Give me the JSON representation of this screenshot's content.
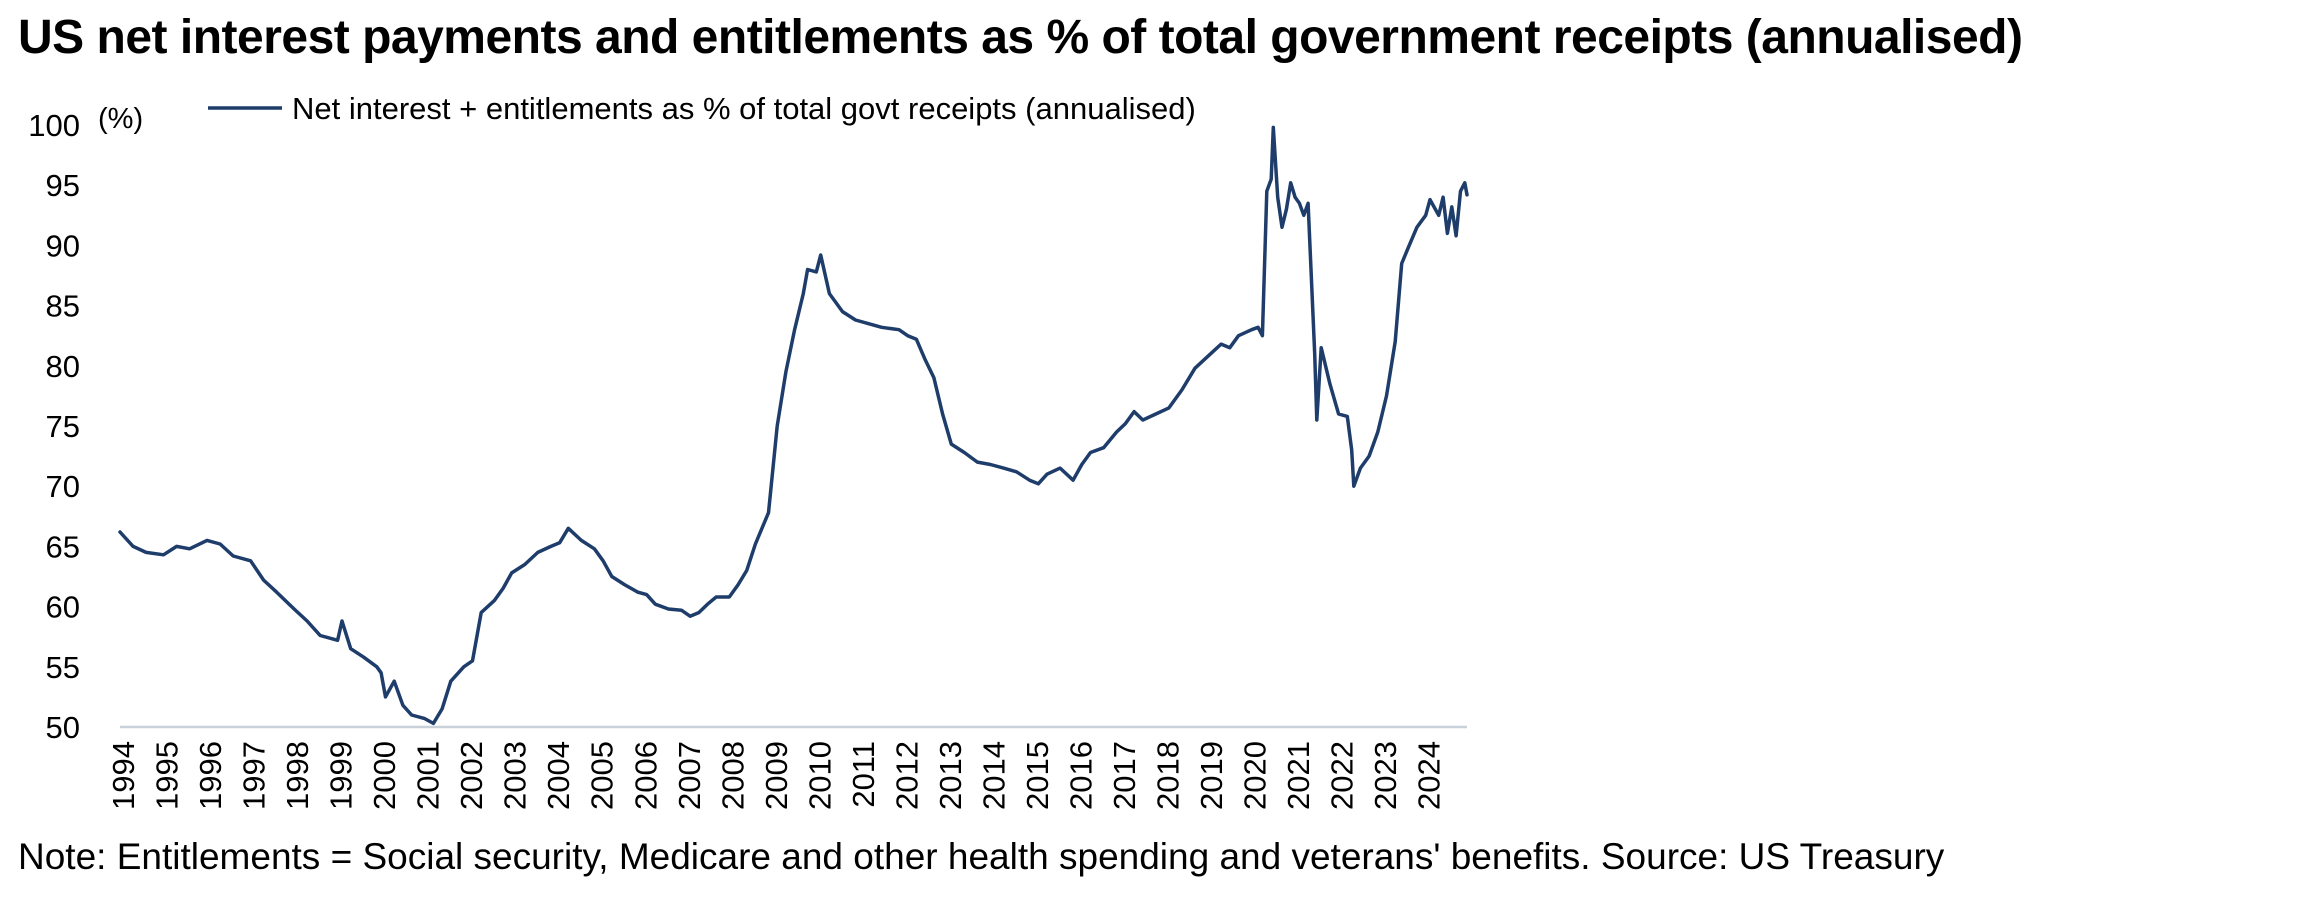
{
  "title": "US net interest payments and entitlements as % of total government receipts (annualised)",
  "note": "Note: Entitlements = Social security, Medicare and other health spending and veterans' benefits. Source: US Treasury",
  "colors": {
    "series": "#1f3d6b",
    "axis": "#c8d0da"
  },
  "chart_data": {
    "type": "line",
    "title": "US net interest payments and entitlements as % of total government receipts (annualised)",
    "ylabel": "(%)",
    "ylim": [
      50,
      100
    ],
    "yticks": [
      50,
      55,
      60,
      65,
      70,
      75,
      80,
      85,
      90,
      95,
      100
    ],
    "xlim": [
      1994.0,
      2024.95
    ],
    "xticks": [
      "1994",
      "1995",
      "1996",
      "1997",
      "1998",
      "1999",
      "2000",
      "2001",
      "2002",
      "2003",
      "2004",
      "2005",
      "2006",
      "2007",
      "2008",
      "2009",
      "2010",
      "2011",
      "2012",
      "2013",
      "2014",
      "2015",
      "2016",
      "2017",
      "2018",
      "2019",
      "2020",
      "2021",
      "2022",
      "2023",
      "2024"
    ],
    "legend": "top-left",
    "grid": false,
    "series": [
      {
        "name": "Net interest + entitlements as % of total govt receipts (annualised)",
        "points": [
          [
            1994.0,
            66.2
          ],
          [
            1994.3,
            65.0
          ],
          [
            1994.6,
            64.5
          ],
          [
            1995.0,
            64.3
          ],
          [
            1995.3,
            65.0
          ],
          [
            1995.6,
            64.8
          ],
          [
            1996.0,
            65.5
          ],
          [
            1996.3,
            65.2
          ],
          [
            1996.6,
            64.2
          ],
          [
            1997.0,
            63.8
          ],
          [
            1997.3,
            62.2
          ],
          [
            1997.6,
            61.2
          ],
          [
            1998.0,
            59.8
          ],
          [
            1998.3,
            58.8
          ],
          [
            1998.6,
            57.6
          ],
          [
            1999.0,
            57.2
          ],
          [
            1999.1,
            58.8
          ],
          [
            1999.3,
            56.5
          ],
          [
            1999.6,
            55.8
          ],
          [
            1999.9,
            55.0
          ],
          [
            2000.0,
            54.5
          ],
          [
            2000.1,
            52.5
          ],
          [
            2000.3,
            53.8
          ],
          [
            2000.5,
            51.8
          ],
          [
            2000.7,
            51.0
          ],
          [
            2001.0,
            50.7
          ],
          [
            2001.2,
            50.3
          ],
          [
            2001.4,
            51.5
          ],
          [
            2001.6,
            53.8
          ],
          [
            2001.9,
            55.0
          ],
          [
            2002.1,
            55.5
          ],
          [
            2002.3,
            59.5
          ],
          [
            2002.6,
            60.5
          ],
          [
            2002.8,
            61.5
          ],
          [
            2003.0,
            62.8
          ],
          [
            2003.3,
            63.5
          ],
          [
            2003.6,
            64.5
          ],
          [
            2003.9,
            65.0
          ],
          [
            2004.1,
            65.3
          ],
          [
            2004.3,
            66.5
          ],
          [
            2004.6,
            65.5
          ],
          [
            2004.9,
            64.8
          ],
          [
            2005.1,
            63.8
          ],
          [
            2005.3,
            62.5
          ],
          [
            2005.6,
            61.8
          ],
          [
            2005.9,
            61.2
          ],
          [
            2006.1,
            61.0
          ],
          [
            2006.3,
            60.2
          ],
          [
            2006.6,
            59.8
          ],
          [
            2006.9,
            59.7
          ],
          [
            2007.1,
            59.2
          ],
          [
            2007.3,
            59.5
          ],
          [
            2007.5,
            60.2
          ],
          [
            2007.7,
            60.8
          ],
          [
            2008.0,
            60.8
          ],
          [
            2008.2,
            61.8
          ],
          [
            2008.4,
            63.0
          ],
          [
            2008.6,
            65.2
          ],
          [
            2008.9,
            67.8
          ],
          [
            2009.1,
            75.0
          ],
          [
            2009.3,
            79.5
          ],
          [
            2009.5,
            83.0
          ],
          [
            2009.7,
            86.0
          ],
          [
            2009.8,
            88.0
          ],
          [
            2010.0,
            87.8
          ],
          [
            2010.1,
            89.2
          ],
          [
            2010.3,
            86.0
          ],
          [
            2010.6,
            84.5
          ],
          [
            2010.9,
            83.8
          ],
          [
            2011.2,
            83.5
          ],
          [
            2011.5,
            83.2
          ],
          [
            2011.9,
            83.0
          ],
          [
            2012.1,
            82.5
          ],
          [
            2012.3,
            82.2
          ],
          [
            2012.5,
            80.5
          ],
          [
            2012.7,
            79.0
          ],
          [
            2012.9,
            76.0
          ],
          [
            2013.1,
            73.5
          ],
          [
            2013.4,
            72.8
          ],
          [
            2013.7,
            72.0
          ],
          [
            2014.0,
            71.8
          ],
          [
            2014.3,
            71.5
          ],
          [
            2014.6,
            71.2
          ],
          [
            2014.9,
            70.5
          ],
          [
            2015.1,
            70.2
          ],
          [
            2015.3,
            71.0
          ],
          [
            2015.6,
            71.5
          ],
          [
            2015.9,
            70.5
          ],
          [
            2016.1,
            71.8
          ],
          [
            2016.3,
            72.8
          ],
          [
            2016.6,
            73.2
          ],
          [
            2016.9,
            74.5
          ],
          [
            2017.1,
            75.2
          ],
          [
            2017.3,
            76.2
          ],
          [
            2017.5,
            75.5
          ],
          [
            2017.8,
            76.0
          ],
          [
            2018.1,
            76.5
          ],
          [
            2018.4,
            78.0
          ],
          [
            2018.7,
            79.8
          ],
          [
            2019.0,
            80.8
          ],
          [
            2019.3,
            81.8
          ],
          [
            2019.5,
            81.5
          ],
          [
            2019.7,
            82.5
          ],
          [
            2020.0,
            83.0
          ],
          [
            2020.15,
            83.2
          ],
          [
            2020.25,
            82.5
          ],
          [
            2020.35,
            94.5
          ],
          [
            2020.45,
            95.5
          ],
          [
            2020.5,
            99.8
          ],
          [
            2020.6,
            94.0
          ],
          [
            2020.7,
            91.5
          ],
          [
            2020.8,
            93.0
          ],
          [
            2020.9,
            95.2
          ],
          [
            2021.0,
            94.0
          ],
          [
            2021.1,
            93.5
          ],
          [
            2021.2,
            92.5
          ],
          [
            2021.3,
            93.5
          ],
          [
            2021.45,
            81.0
          ],
          [
            2021.5,
            75.5
          ],
          [
            2021.6,
            81.5
          ],
          [
            2021.8,
            78.5
          ],
          [
            2022.0,
            76.0
          ],
          [
            2022.2,
            75.8
          ],
          [
            2022.3,
            73.0
          ],
          [
            2022.35,
            70.0
          ],
          [
            2022.5,
            71.5
          ],
          [
            2022.7,
            72.5
          ],
          [
            2022.9,
            74.5
          ],
          [
            2023.1,
            77.5
          ],
          [
            2023.3,
            82.0
          ],
          [
            2023.45,
            88.5
          ],
          [
            2023.6,
            89.8
          ],
          [
            2023.8,
            91.5
          ],
          [
            2024.0,
            92.5
          ],
          [
            2024.1,
            93.8
          ],
          [
            2024.3,
            92.5
          ],
          [
            2024.4,
            94.0
          ],
          [
            2024.5,
            91.0
          ],
          [
            2024.6,
            93.2
          ],
          [
            2024.7,
            90.8
          ],
          [
            2024.8,
            94.5
          ],
          [
            2024.9,
            95.2
          ],
          [
            2024.95,
            94.2
          ]
        ]
      }
    ]
  }
}
